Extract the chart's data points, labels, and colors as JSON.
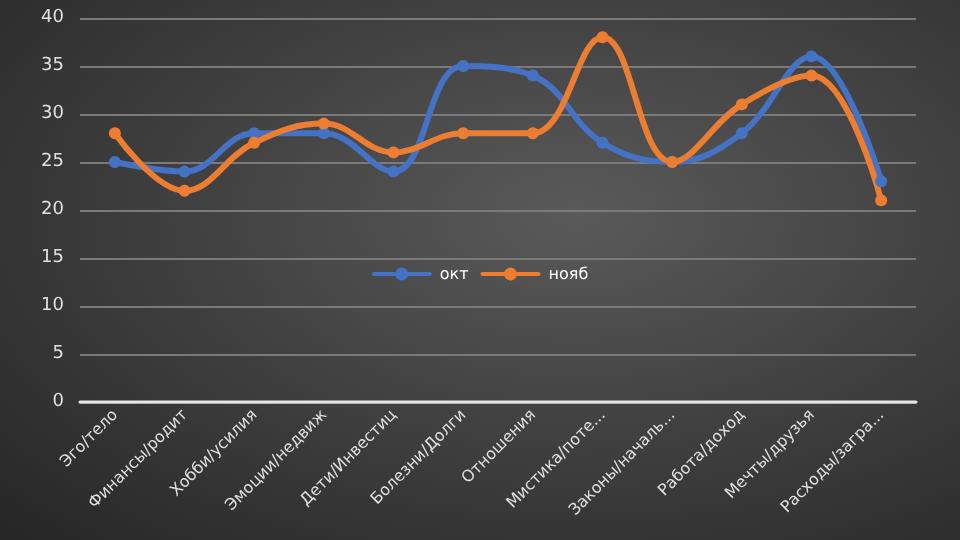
{
  "chart_data": {
    "type": "line",
    "categories": [
      "Эго/тело",
      "Финансы/родит",
      "Хобби/усилия",
      "Эмоции/недвиж",
      "Дети/Инвестиц",
      "Болезни/Долги",
      "Отношения",
      "Мистика/поте...",
      "Законы/началь...",
      "Работа/доход",
      "Мечты/друзья",
      "Расходы/загра..."
    ],
    "series": [
      {
        "name": "окт",
        "color": "#4472c4",
        "values": [
          25,
          24,
          28,
          28,
          24,
          35,
          34,
          27,
          25,
          28,
          36,
          23
        ]
      },
      {
        "name": "нояб",
        "color": "#ed7d31",
        "values": [
          28,
          22,
          27,
          29,
          26,
          28,
          28,
          38,
          25,
          31,
          34,
          21
        ]
      }
    ],
    "ylim": [
      0,
      40
    ],
    "yticks": [
      0,
      5,
      10,
      15,
      20,
      25,
      30,
      35,
      40
    ],
    "grid": "y",
    "legend": "center",
    "marker": "circle",
    "line_style": "solid"
  }
}
